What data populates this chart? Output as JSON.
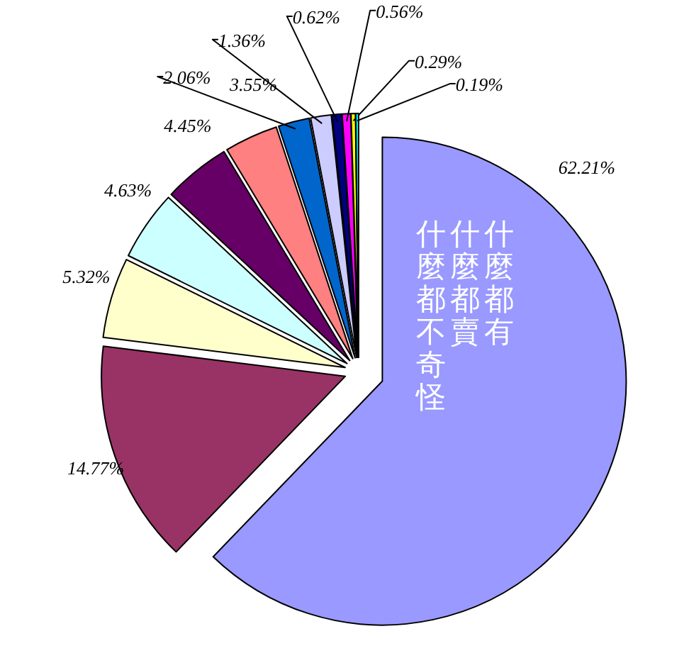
{
  "chart_data": {
    "type": "pie",
    "categories": [
      null,
      null,
      null,
      null,
      null,
      null,
      null,
      null,
      null,
      null,
      null,
      null
    ],
    "values": [
      62.21,
      14.77,
      5.32,
      4.63,
      4.45,
      3.55,
      2.06,
      1.36,
      0.62,
      0.56,
      0.29,
      0.19
    ],
    "colors": [
      "#9999ff",
      "#993366",
      "#ffffcc",
      "#ccffff",
      "#660066",
      "#ff8080",
      "#0066cc",
      "#ccccff",
      "#000080",
      "#ff00ff",
      "#ffff00",
      "#00ffff"
    ],
    "value_labels": [
      "62.21%",
      "14.77%",
      "5.32%",
      "4.63%",
      "4.45%",
      "3.55%",
      "2.06%",
      "1.36%",
      "0.62%",
      "0.56%",
      "0.29%",
      "0.19%"
    ],
    "annotations": [
      "什麼都有",
      "什麼都賣",
      "什麼都不奇怪"
    ]
  }
}
